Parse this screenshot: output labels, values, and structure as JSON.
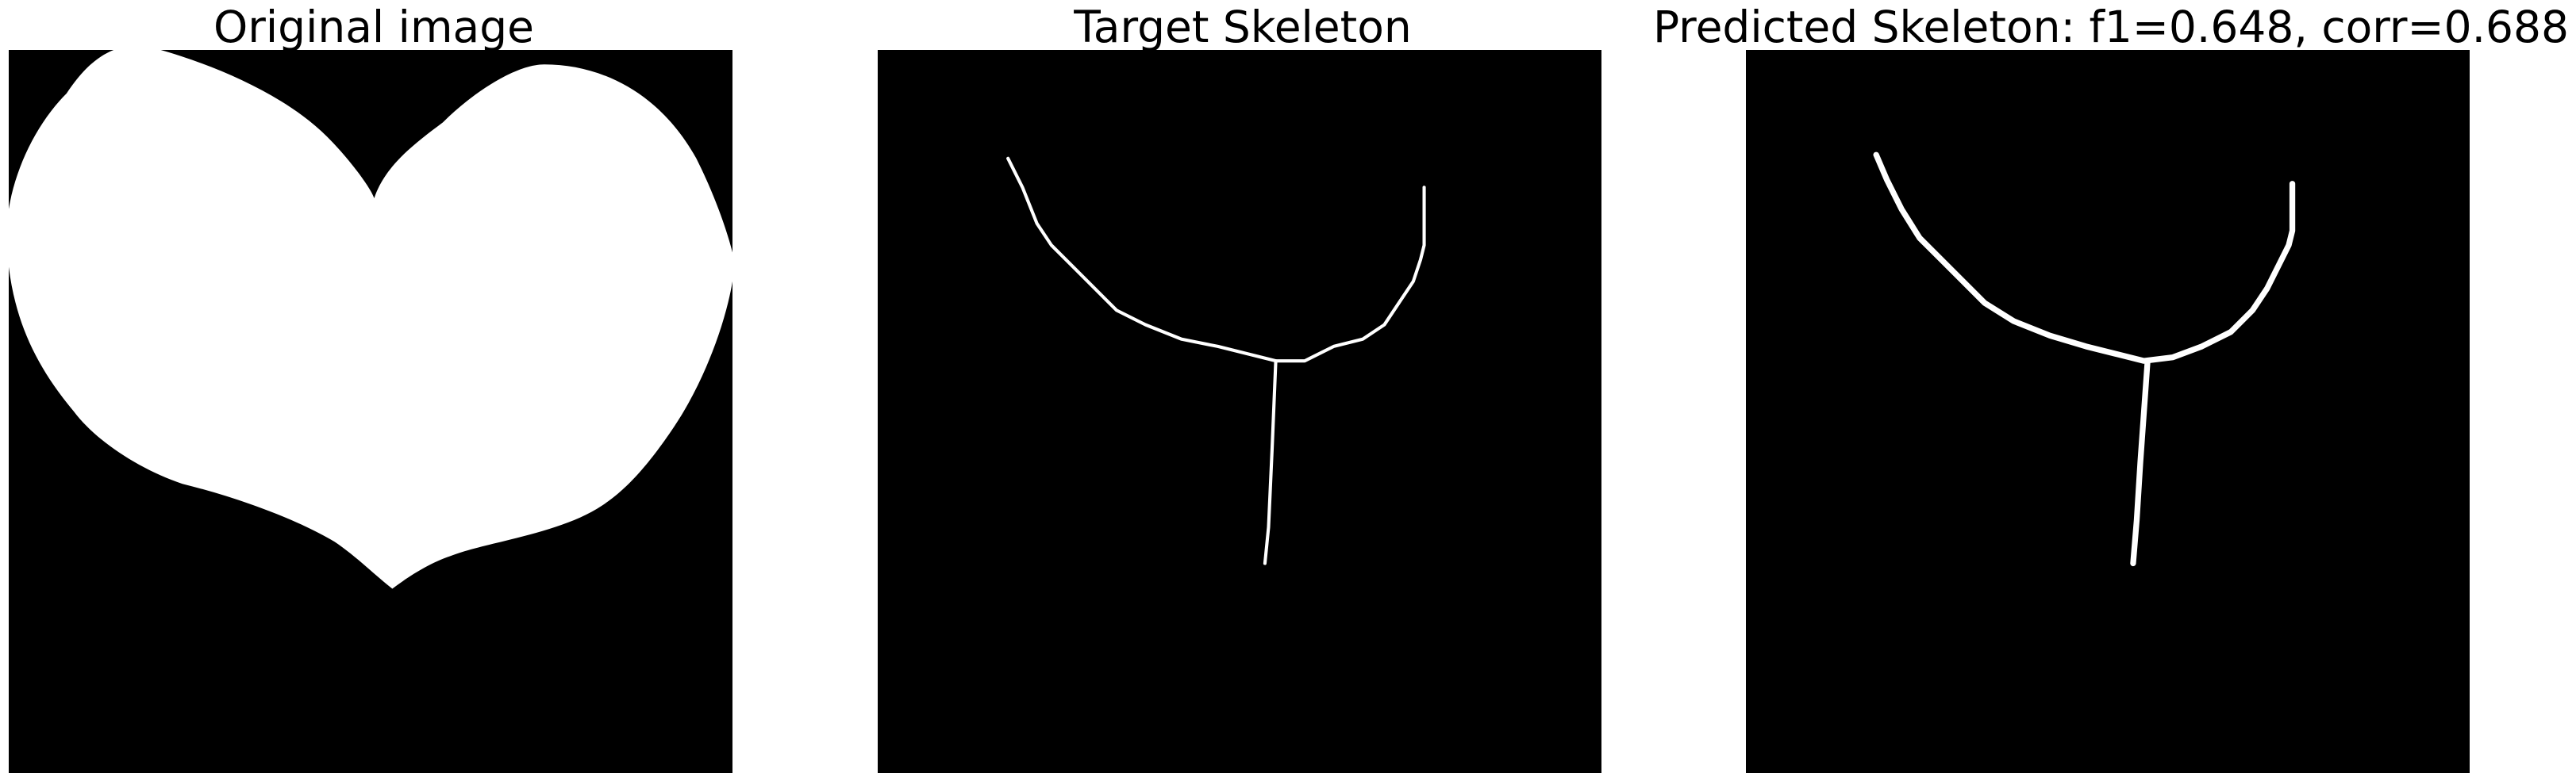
{
  "colors": {
    "background": "#ffffff",
    "image_background": "#000000",
    "foreground": "#ffffff"
  },
  "panels": [
    {
      "title": "Original image"
    },
    {
      "title": "Target Skeleton"
    },
    {
      "title": "Predicted Skeleton: f1=0.648, corr=0.688"
    }
  ]
}
